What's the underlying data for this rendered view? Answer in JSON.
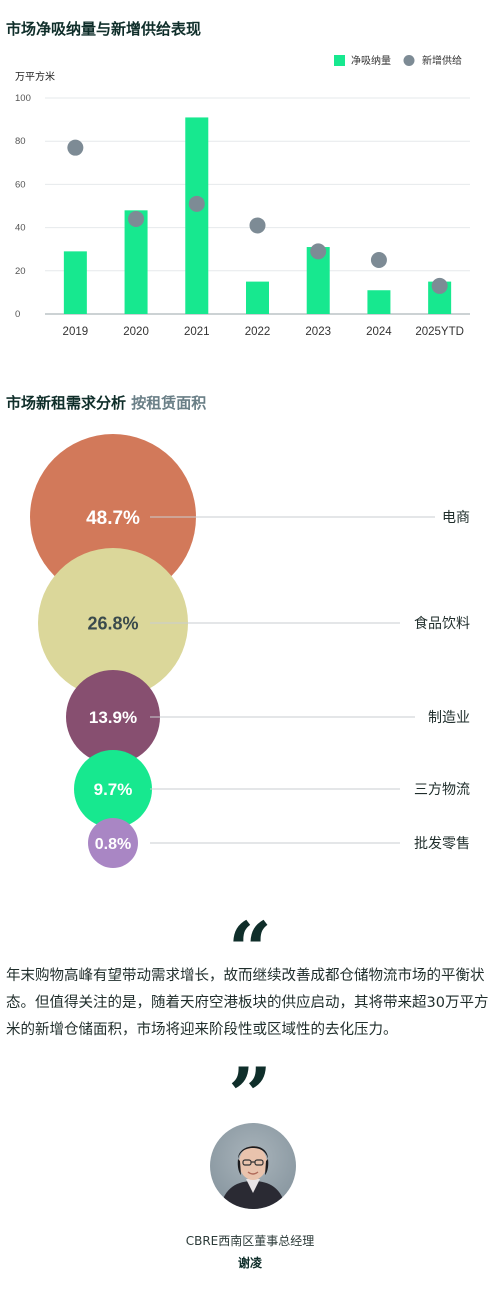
{
  "section1": {
    "title": "市场净吸纳量与新增供给表现"
  },
  "section2": {
    "title": "市场新租需求分析",
    "subtitle": "按租赁面积"
  },
  "chart_data": [
    {
      "type": "bar",
      "title": "市场净吸纳量与新增供给表现",
      "ylabel": "万平方米",
      "ylim": [
        0,
        100
      ],
      "yticks": [
        0,
        20,
        40,
        60,
        80,
        100
      ],
      "grid": true,
      "legend_position": "top-right",
      "categories": [
        "2019",
        "2020",
        "2021",
        "2022",
        "2023",
        "2024",
        "2025YTD"
      ],
      "series": [
        {
          "name": "净吸纳量",
          "kind": "bar",
          "color": "#17e88f",
          "values": [
            29,
            48,
            91,
            15,
            31,
            11,
            15
          ]
        },
        {
          "name": "新增供给",
          "kind": "scatter",
          "color": "#7d8b95",
          "values": [
            77,
            44,
            51,
            41,
            29,
            25,
            13
          ]
        }
      ]
    },
    {
      "type": "bubble",
      "title": "市场新租需求分析 按租赁面积",
      "items": [
        {
          "label": "电商",
          "value": 48.7,
          "text": "48.7%",
          "color": "#d2795a",
          "text_color": "#ffffff"
        },
        {
          "label": "食品饮料",
          "value": 26.8,
          "text": "26.8%",
          "color": "#dbd79a",
          "text_color": "#3a4a4c"
        },
        {
          "label": "制造业",
          "value": 13.9,
          "text": "13.9%",
          "color": "#874f70",
          "text_color": "#ffffff"
        },
        {
          "label": "三方物流",
          "value": 9.7,
          "text": "9.7%",
          "color": "#17e88f",
          "text_color": "#ffffff"
        },
        {
          "label": "批发零售",
          "value": 0.8,
          "text": "0.8%",
          "color": "#a986c4",
          "text_color": "#ffffff"
        }
      ]
    }
  ],
  "quote": {
    "open_mark": "“",
    "close_mark": "”",
    "text": "年末购物高峰有望带动需求增长，故而继续改善成都仓储物流市场的平衡状态。但值得关注的是，随着天府空港板块的供应启动，其将带来超30万平方米的新增仓储面积，市场将迎来阶段性或区域性的去化压力。"
  },
  "author": {
    "role": "CBRE西南区董事总经理",
    "name": "谢凌"
  }
}
